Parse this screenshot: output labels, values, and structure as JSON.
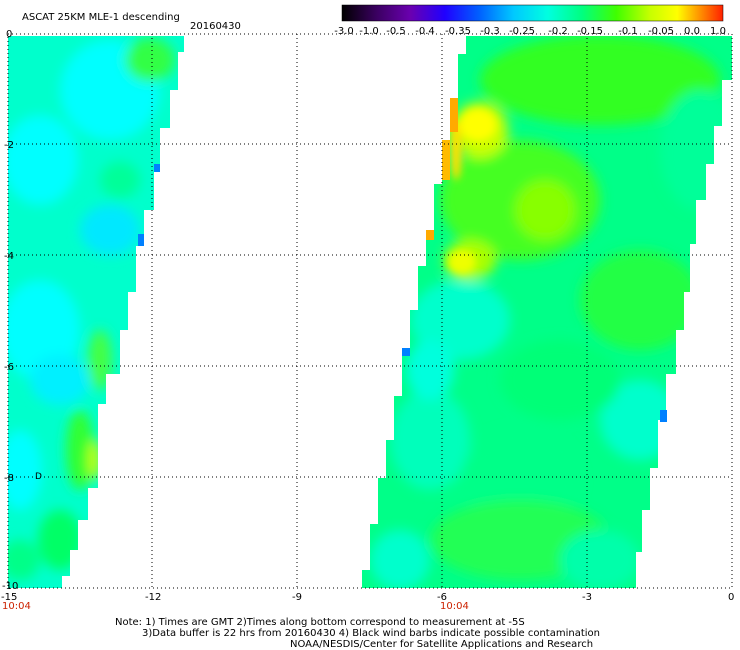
{
  "header": {
    "title": "ASCAT 25KM MLE-1 descending",
    "date": "20160430"
  },
  "colorbar": {
    "labels": [
      "-3.0",
      "-1.0",
      "-0.5",
      "-0.4",
      "-0.35",
      "-0.3",
      "-0.25",
      "-0.2",
      "-0.15",
      "-0.1",
      "-0.05",
      "0.0",
      "1.0"
    ],
    "colors": [
      "#000000",
      "#3a0060",
      "#6a00b0",
      "#2000ff",
      "#0060ff",
      "#00c8ff",
      "#00ffe0",
      "#00ff80",
      "#40ff00",
      "#c8ff00",
      "#ffff00",
      "#ff9000",
      "#ff2000"
    ]
  },
  "map": {
    "x_ticks": [
      "-15",
      "-12",
      "-9",
      "-6",
      "-3",
      "0"
    ],
    "y_ticks": [
      "0",
      "-2",
      "-4",
      "-6",
      "-8",
      "-10"
    ],
    "time_labels": [
      "10:04",
      "10:04"
    ],
    "marker": "D"
  },
  "footer": {
    "line1": "Note: 1) Times are GMT 2)Times along bottom correspond to measurement at -5S",
    "line2": "3)Data buffer is 22 hrs from 20160430 4) Black wind barbs indicate possible contamination",
    "line3": "NOAA/NESDIS/Center for Satellite Applications and Research"
  },
  "colors": {
    "swath_base": "#00ffcc",
    "swath_cyan": "#00ffff",
    "swath_green": "#00ff66",
    "swath_lime": "#66ff00",
    "swath_yellow": "#ffff00",
    "swath_orange": "#ffaa00",
    "swath_blue": "#0080ff",
    "time_label": "#cc2200"
  }
}
